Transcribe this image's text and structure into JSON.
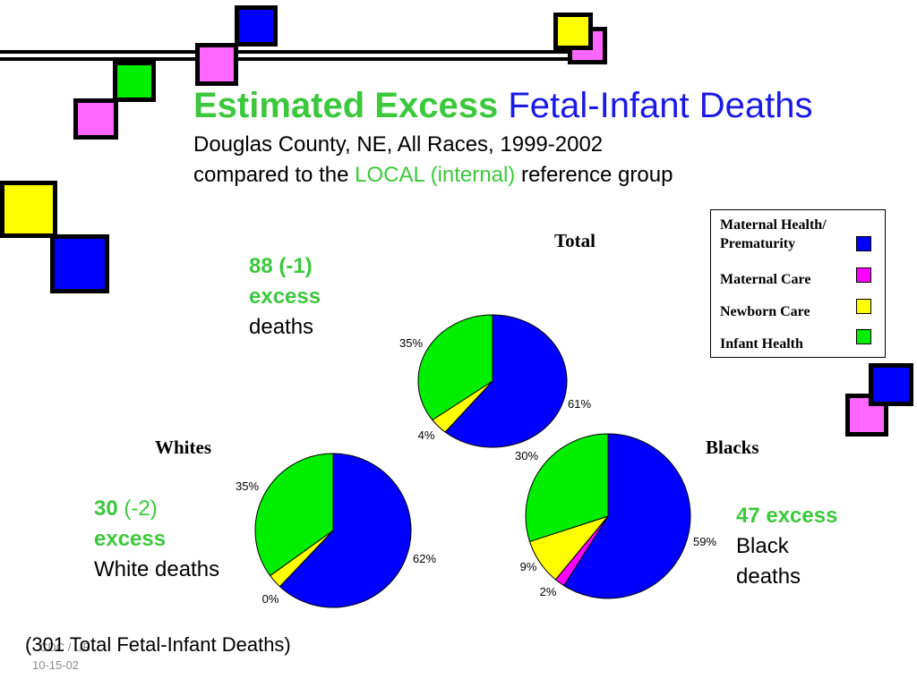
{
  "title": {
    "part1": "Estimated Excess",
    "part2": "Fetal-Infant Deaths",
    "line2": "Douglas County, NE, All Races, 1999-2002",
    "line3_prefix": "compared to the",
    "line3_highlight": "LOCAL (internal)",
    "line3_suffix": "reference group"
  },
  "colors": {
    "maternal_health": "#0000ff",
    "maternal_care": "#ff00ff",
    "newborn_care": "#ffff00",
    "infant_health": "#00ee00",
    "title_green": "#3cc83c",
    "title_blue": "#1a1ae6"
  },
  "notes": {
    "total": {
      "count": "88 (-1)",
      "excess": "excess",
      "tail": "deaths"
    },
    "whites": {
      "count": "30",
      "delta": "(-2)",
      "excess": "excess",
      "tail": "White deaths"
    },
    "blacks": {
      "excess": "47 excess",
      "line2": "Black",
      "line3": "deaths"
    }
  },
  "footer": "(301 Total Fetal-Infant Deaths)",
  "credit": {
    "line1": "CDC / UB",
    "line2": "10-15-02"
  },
  "chart_data": [
    {
      "type": "pie",
      "title": "Total",
      "categories": [
        "Maternal Health/ Prematurity",
        "Maternal Care",
        "Newborn Care",
        "Infant Health"
      ],
      "values": [
        61,
        0,
        4,
        35
      ],
      "labels": [
        "61%",
        "",
        "4%",
        "35%"
      ],
      "colors": [
        "#0000ff",
        "#ff00ff",
        "#ffff00",
        "#00ee00"
      ]
    },
    {
      "type": "pie",
      "title": "Whites",
      "categories": [
        "Maternal Health/ Prematurity",
        "Maternal Care",
        "Newborn Care",
        "Infant Health"
      ],
      "values": [
        62,
        0,
        3,
        35
      ],
      "labels": [
        "62%",
        "0%",
        "",
        "35%"
      ],
      "colors": [
        "#0000ff",
        "#ff00ff",
        "#ffff00",
        "#00ee00"
      ]
    },
    {
      "type": "pie",
      "title": "Blacks",
      "categories": [
        "Maternal Health/ Prematurity",
        "Maternal Care",
        "Newborn Care",
        "Infant Health"
      ],
      "values": [
        59,
        2,
        9,
        30
      ],
      "labels": [
        "59%",
        "2%",
        "9%",
        "30%"
      ],
      "colors": [
        "#0000ff",
        "#ff00ff",
        "#ffff00",
        "#00ee00"
      ]
    }
  ],
  "legend": {
    "items": [
      {
        "label": "Maternal Health/ Prematurity",
        "color": "#0000ff"
      },
      {
        "label": "Maternal Care",
        "color": "#ff00ff"
      },
      {
        "label": "Newborn Care",
        "color": "#ffff00"
      },
      {
        "label": "Infant Health",
        "color": "#00ee00"
      }
    ]
  }
}
